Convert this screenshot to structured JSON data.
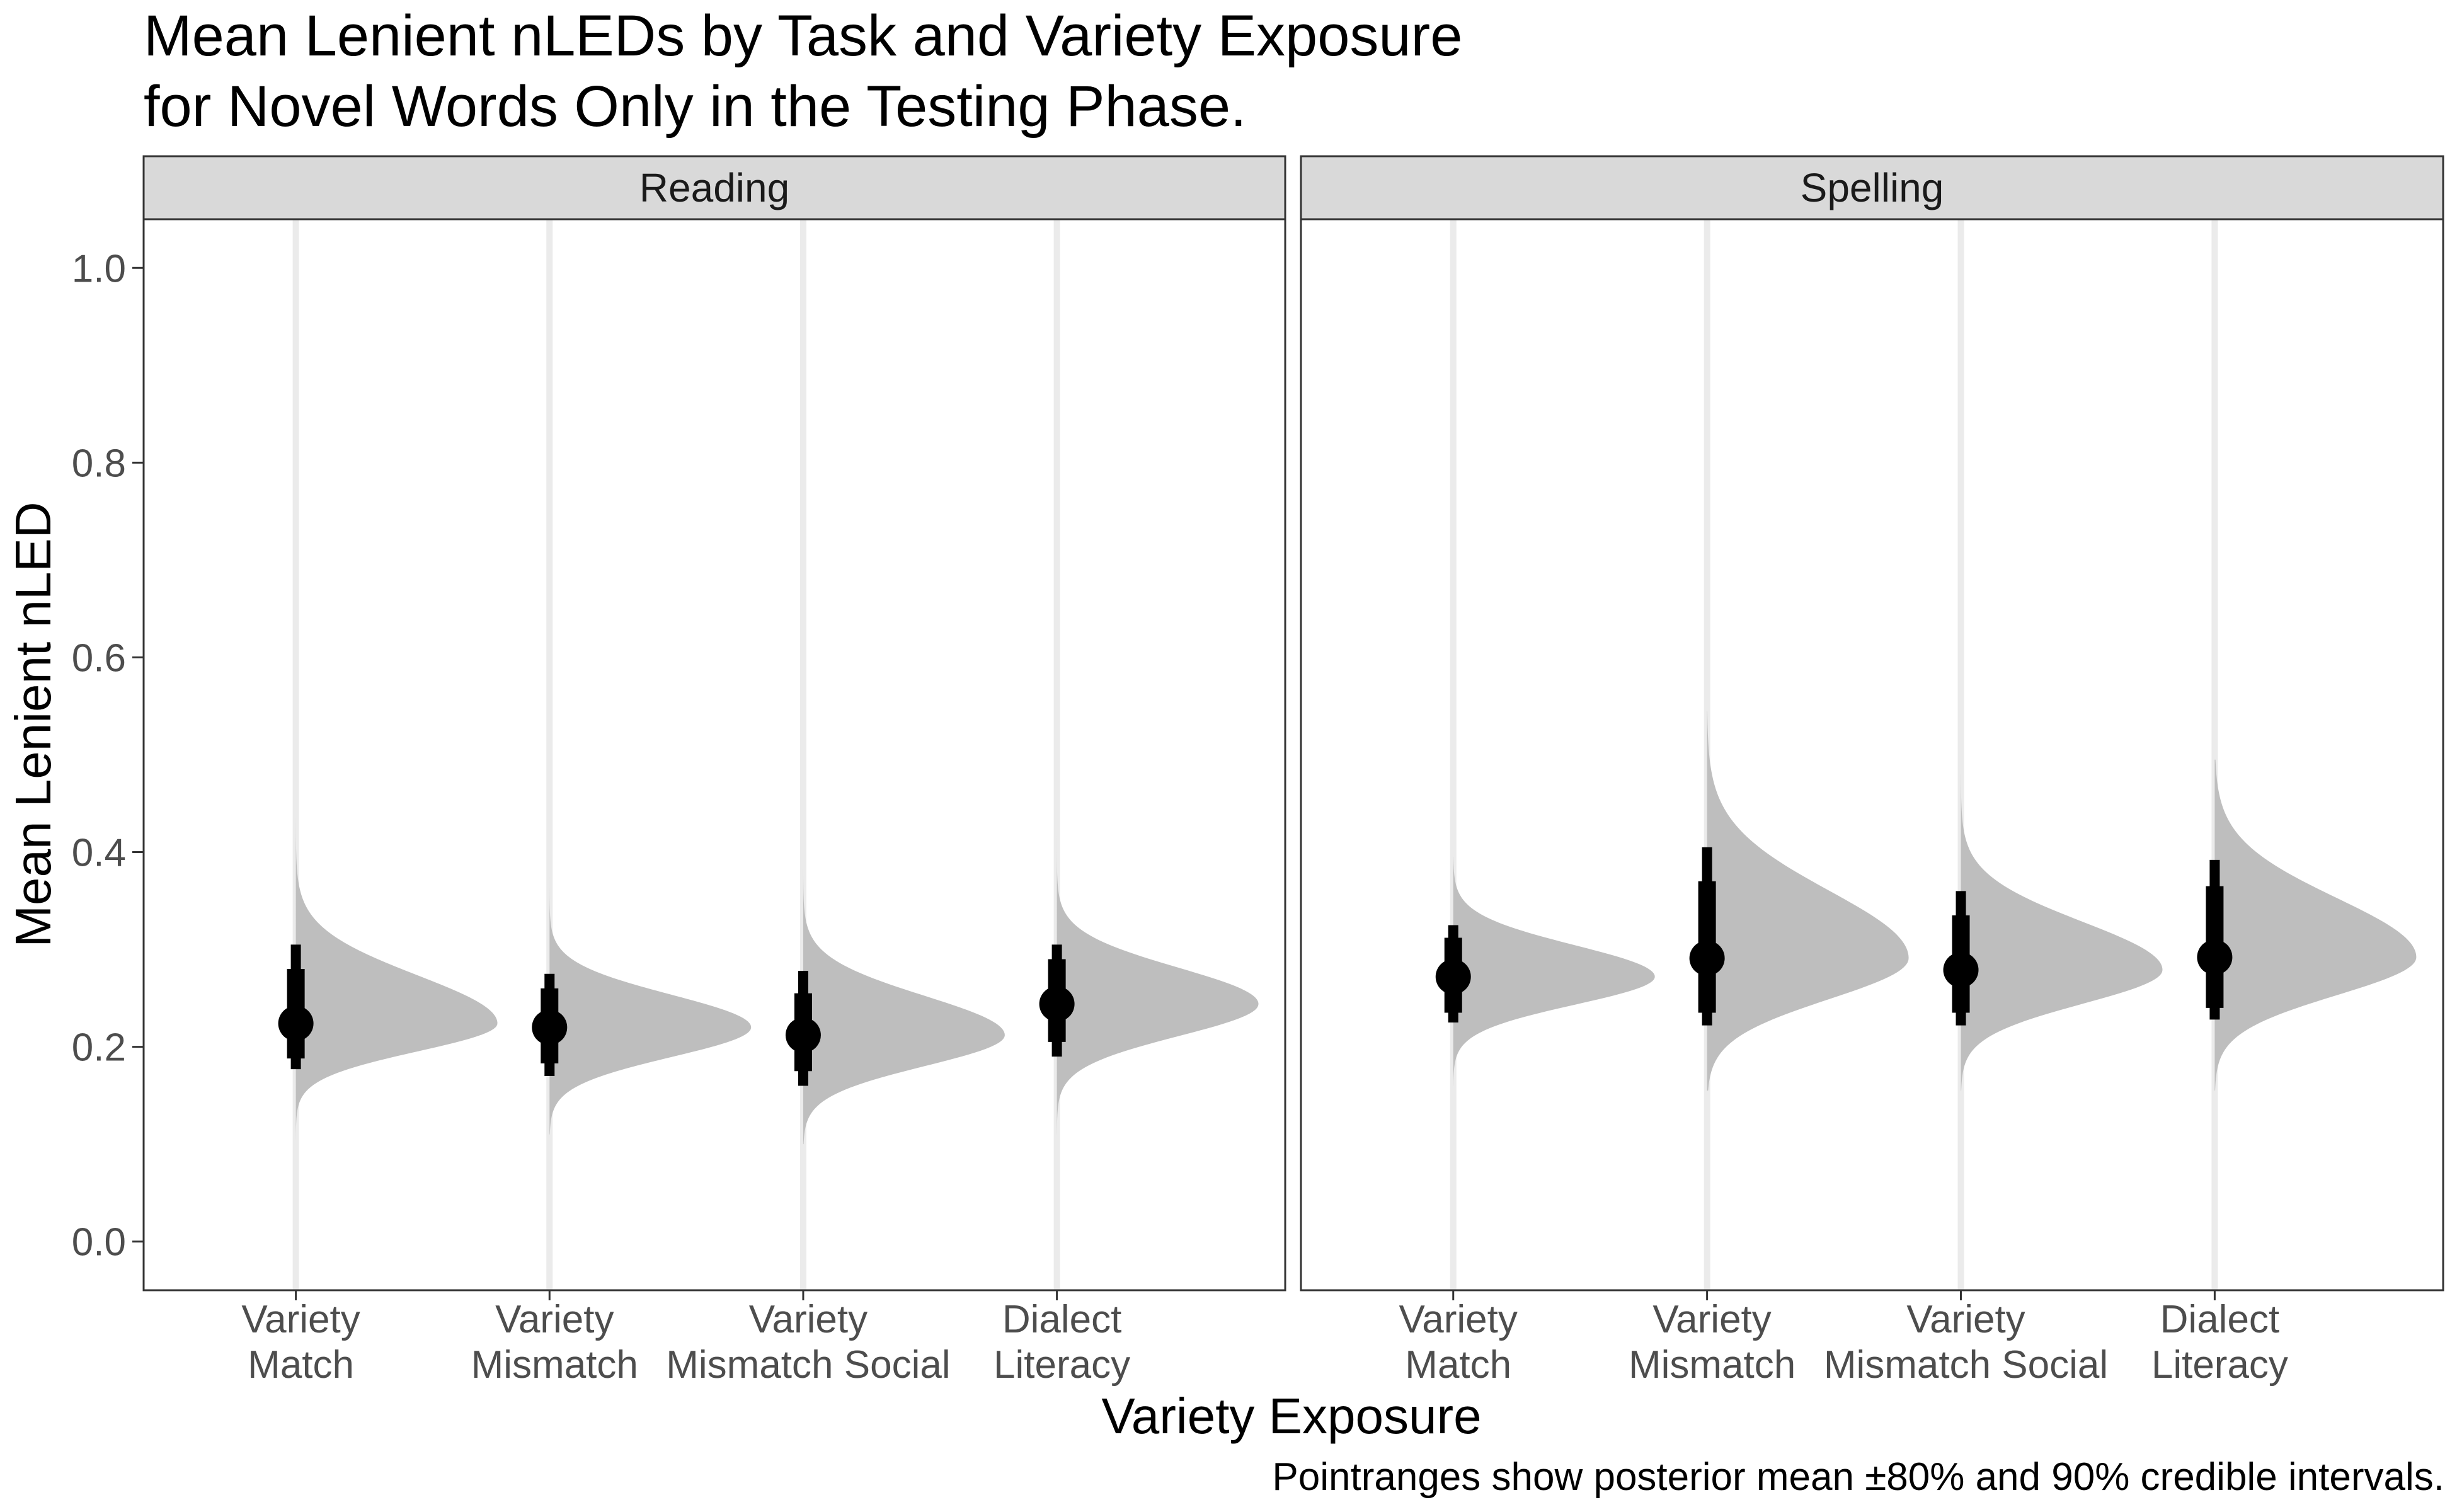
{
  "chart_data": {
    "type": "pointrange-halfeye",
    "title": [
      "Mean Lenient nLEDs by Task and Variety Exposure",
      "for Novel Words Only in the Testing Phase."
    ],
    "xlabel": "Variety Exposure",
    "ylabel": "Mean Lenient nLED",
    "caption": "Pointranges show posterior mean ±80% and 90% credible intervals.",
    "ylim": [
      -0.05,
      1.05
    ],
    "yticks": [
      "0.0",
      "0.2",
      "0.4",
      "0.6",
      "0.8",
      "1.0"
    ],
    "categories": [
      [
        "Variety",
        "Match"
      ],
      [
        "Variety",
        "Mismatch"
      ],
      [
        "Variety",
        "Mismatch Social"
      ],
      [
        "Dialect",
        "Literacy"
      ]
    ],
    "grid": "vertical-major",
    "colors": {
      "density": "#bebebe",
      "interval": "#000000",
      "strip": "#d9d9d9",
      "grid": "#ebebeb",
      "border": "#333333"
    },
    "panels": [
      {
        "label": "Reading",
        "series": [
          {
            "mean": 0.224,
            "ci80": [
              0.188,
              0.28
            ],
            "ci90": [
              0.177,
              0.305
            ],
            "min": 0.105,
            "max": 0.435
          },
          {
            "mean": 0.22,
            "ci80": [
              0.183,
              0.26
            ],
            "ci90": [
              0.17,
              0.275
            ],
            "min": 0.11,
            "max": 0.375
          },
          {
            "mean": 0.212,
            "ci80": [
              0.175,
              0.255
            ],
            "ci90": [
              0.16,
              0.278
            ],
            "min": 0.1,
            "max": 0.42
          },
          {
            "mean": 0.244,
            "ci80": [
              0.205,
              0.29
            ],
            "ci90": [
              0.19,
              0.305
            ],
            "min": 0.11,
            "max": 0.435
          }
        ]
      },
      {
        "label": "Spelling",
        "series": [
          {
            "mean": 0.272,
            "ci80": [
              0.235,
              0.312
            ],
            "ci90": [
              0.225,
              0.325
            ],
            "min": 0.16,
            "max": 0.395
          },
          {
            "mean": 0.291,
            "ci80": [
              0.235,
              0.37
            ],
            "ci90": [
              0.222,
              0.405
            ],
            "min": 0.155,
            "max": 0.545
          },
          {
            "mean": 0.279,
            "ci80": [
              0.235,
              0.335
            ],
            "ci90": [
              0.222,
              0.36
            ],
            "min": 0.155,
            "max": 0.48
          },
          {
            "mean": 0.292,
            "ci80": [
              0.24,
              0.365
            ],
            "ci90": [
              0.228,
              0.392
            ],
            "min": 0.155,
            "max": 0.495
          }
        ]
      }
    ]
  }
}
